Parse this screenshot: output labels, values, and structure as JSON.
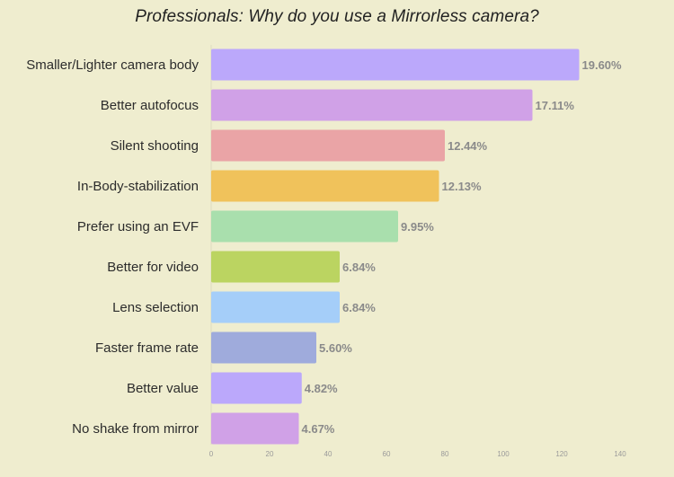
{
  "chart_data": {
    "type": "bar",
    "orientation": "horizontal",
    "title": "Professionals: Why do you use a Mirrorless camera?",
    "xlabel": "",
    "ylabel": "",
    "xlim": [
      0,
      140
    ],
    "ticks": [
      "0",
      "20",
      "40",
      "60",
      "80",
      "100",
      "120",
      "140"
    ],
    "tick_values": [
      0,
      20,
      40,
      60,
      80,
      100,
      120,
      140
    ],
    "grid": false,
    "categories": [
      "Smaller/Lighter camera body",
      "Better autofocus",
      "Silent shooting",
      "In-Body-stabilization",
      "Prefer using an EVF",
      "Better for video",
      "Lens selection",
      "Faster frame rate",
      "Better value",
      "No shake from mirror"
    ],
    "values": [
      126,
      110,
      80,
      78,
      64,
      44,
      44,
      36,
      31,
      30
    ],
    "value_labels": [
      "19.60%",
      "17.11%",
      "12.44%",
      "12.13%",
      "9.95%",
      "6.84%",
      "6.84%",
      "5.60%",
      "4.82%",
      "4.67%"
    ],
    "colors": [
      "#bba8fb",
      "#d0a1e7",
      "#eaa4a6",
      "#f0c25b",
      "#a9dfad",
      "#bbd461",
      "#a5cef9",
      "#9fabdc",
      "#bba8fb",
      "#d0a1e7"
    ]
  }
}
